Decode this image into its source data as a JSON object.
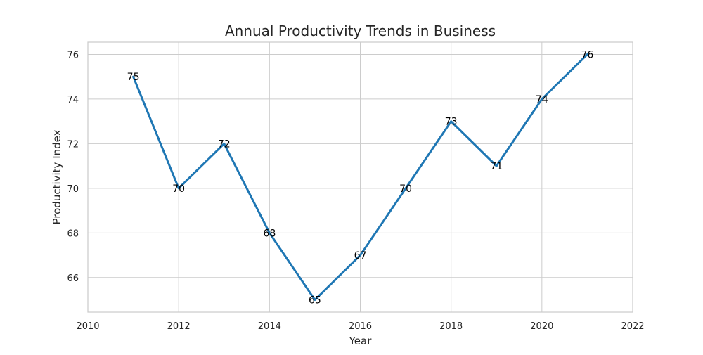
{
  "chart_data": {
    "type": "line",
    "title": "Annual Productivity Trends in Business",
    "xlabel": "Year",
    "ylabel": "Productivity Index",
    "x": [
      2011,
      2012,
      2013,
      2014,
      2015,
      2016,
      2017,
      2018,
      2019,
      2020,
      2021
    ],
    "series": [
      {
        "values": [
          75,
          70,
          72,
          68,
          65,
          67,
          70,
          73,
          71,
          74,
          76
        ]
      }
    ],
    "xlim": [
      2010,
      2022
    ],
    "ylim": [
      64.45,
      76.55
    ],
    "x_ticks": [
      2010,
      2012,
      2014,
      2016,
      2018,
      2020,
      2022
    ],
    "y_ticks": [
      66,
      68,
      70,
      72,
      74,
      76
    ],
    "grid": true,
    "data_labels": true,
    "colors": {
      "line": "#1f77b4",
      "grid": "#cccccc",
      "frame": "#cccccc"
    }
  }
}
